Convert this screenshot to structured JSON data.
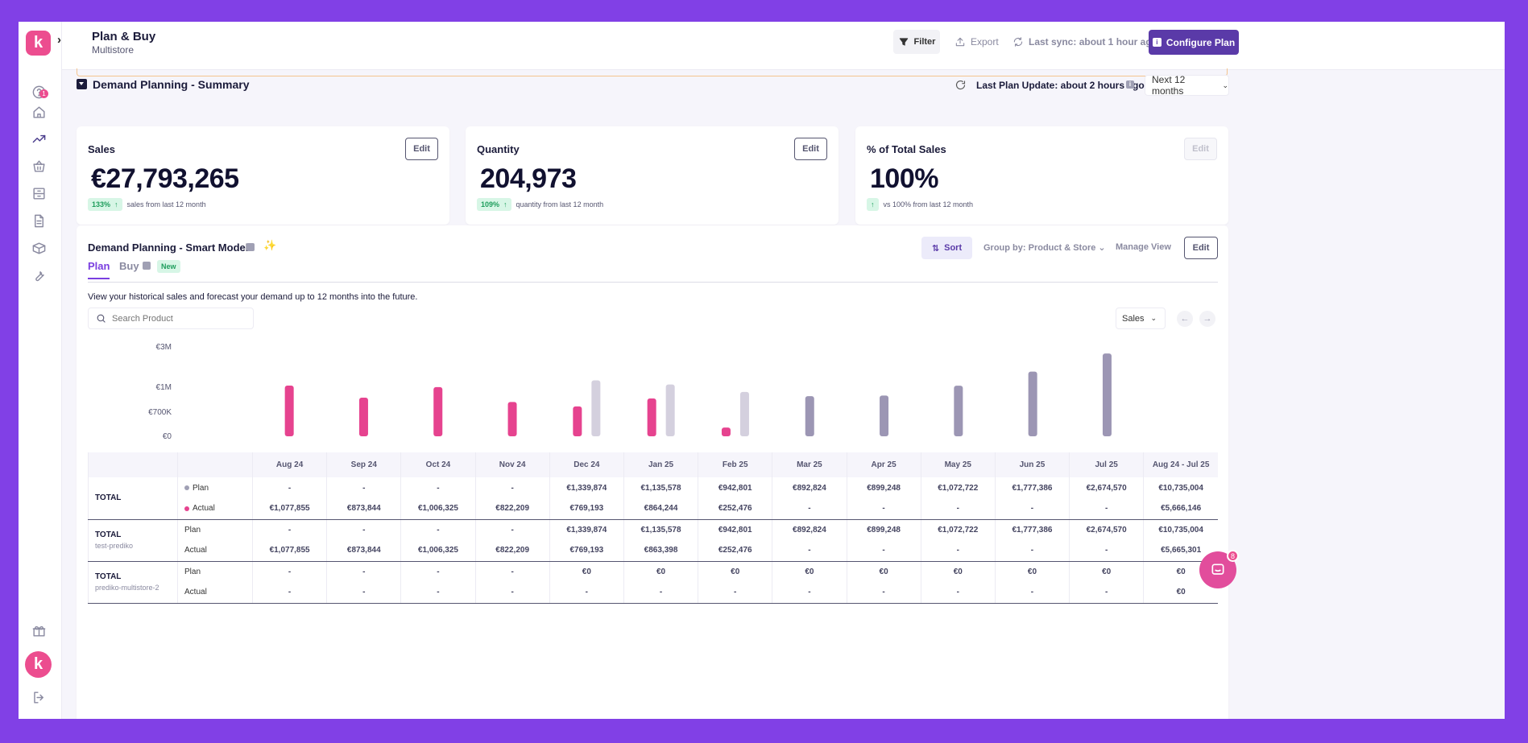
{
  "header": {
    "title": "Plan & Buy",
    "subtitle": "Multistore",
    "filter_label": "Filter",
    "export_label": "Export",
    "sync_label": "Last sync: about 1 hour ago",
    "configure_label": "Configure Plan"
  },
  "sidebar": {
    "logo_letter": "k",
    "notification_count": "1",
    "avatar_letter": "k"
  },
  "summary": {
    "title": "Demand Planning - Summary",
    "last_update": "Last Plan Update: about 2 hours ago",
    "range": "Next 12 months",
    "cards": [
      {
        "title": "Sales",
        "value": "€27,793,265",
        "delta": "133%",
        "delta_text": "sales from last 12 month",
        "edit": "Edit"
      },
      {
        "title": "Quantity",
        "value": "204,973",
        "delta": "109%",
        "delta_text": "quantity from last 12 month",
        "edit": "Edit"
      },
      {
        "title": "% of Total Sales",
        "value": "100%",
        "delta": "",
        "delta_text": "vs 100% from last 12 month",
        "edit": "Edit"
      }
    ]
  },
  "smart_model": {
    "title": "Demand Planning - Smart Model",
    "sort_label": "Sort",
    "group_by": "Group by: Product & Store",
    "manage_view": "Manage View",
    "edit_label": "Edit",
    "tabs": [
      "Plan",
      "Buy"
    ],
    "new_badge": "New",
    "description": "View your historical sales and forecast your demand up to 12 months into the future.",
    "search_placeholder": "Search Product",
    "metric": "Sales"
  },
  "chart_data": {
    "type": "bar",
    "categories": [
      "Aug 24",
      "Sep 24",
      "Oct 24",
      "Nov 24",
      "Dec 24",
      "Jan 25",
      "Feb 25",
      "Mar 25",
      "Apr 25",
      "May 25",
      "Jun 25",
      "Jul 25"
    ],
    "ytick_labels": [
      "€3M",
      "€1M",
      "€700K",
      "€0"
    ],
    "series": [
      {
        "name": "Actual",
        "color": "#e6438f",
        "values": [
          1077855,
          873844,
          1006325,
          822209,
          769193,
          864244,
          252476,
          null,
          null,
          null,
          null,
          null
        ]
      },
      {
        "name": "Plan",
        "color_past": "#d4d0de",
        "color_future": "#9c96b4",
        "values": [
          null,
          null,
          null,
          null,
          1339874,
          1135578,
          942801,
          892824,
          899248,
          1072722,
          1777386,
          2674570
        ]
      }
    ]
  },
  "table": {
    "columns": [
      "Aug 24",
      "Sep 24",
      "Oct 24",
      "Nov 24",
      "Dec 24",
      "Jan 25",
      "Feb 25",
      "Mar 25",
      "Apr 25",
      "May 25",
      "Jun 25",
      "Jul 25",
      "Aug 24 - Jul 25"
    ],
    "groups": [
      {
        "name": "TOTAL",
        "sub": "",
        "rows": [
          {
            "label": "Plan",
            "dot": "#a0a0b4",
            "values": [
              "-",
              "-",
              "-",
              "-",
              "€1,339,874",
              "€1,135,578",
              "€942,801",
              "€892,824",
              "€899,248",
              "€1,072,722",
              "€1,777,386",
              "€2,674,570",
              "€10,735,004"
            ]
          },
          {
            "label": "Actual",
            "dot": "#e6438f",
            "values": [
              "€1,077,855",
              "€873,844",
              "€1,006,325",
              "€822,209",
              "€769,193",
              "€864,244",
              "€252,476",
              "-",
              "-",
              "-",
              "-",
              "-",
              "€5,666,146"
            ]
          }
        ]
      },
      {
        "name": "TOTAL",
        "sub": "test-prediko",
        "rows": [
          {
            "label": "Plan",
            "dot": "",
            "values": [
              "-",
              "-",
              "-",
              "-",
              "€1,339,874",
              "€1,135,578",
              "€942,801",
              "€892,824",
              "€899,248",
              "€1,072,722",
              "€1,777,386",
              "€2,674,570",
              "€10,735,004"
            ]
          },
          {
            "label": "Actual",
            "dot": "",
            "values": [
              "€1,077,855",
              "€873,844",
              "€1,006,325",
              "€822,209",
              "€769,193",
              "€863,398",
              "€252,476",
              "-",
              "-",
              "-",
              "-",
              "-",
              "€5,665,301"
            ]
          }
        ]
      },
      {
        "name": "TOTAL",
        "sub": "prediko-multistore-2",
        "rows": [
          {
            "label": "Plan",
            "dot": "",
            "values": [
              "-",
              "-",
              "-",
              "-",
              "€0",
              "€0",
              "€0",
              "€0",
              "€0",
              "€0",
              "€0",
              "€0",
              "€0"
            ]
          },
          {
            "label": "Actual",
            "dot": "",
            "values": [
              "-",
              "-",
              "-",
              "-",
              "-",
              "-",
              "-",
              "-",
              "-",
              "-",
              "-",
              "-",
              "€0"
            ]
          }
        ]
      }
    ]
  },
  "chat": {
    "count": "8"
  }
}
